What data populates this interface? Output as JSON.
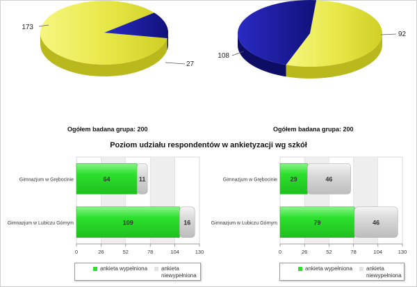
{
  "summary": {
    "left": "Ogółem badana grupa: 200",
    "right": "Ogółem badana grupa: 200"
  },
  "heading": "Poziom udziału respondentów w ankietyzacji wg szkół",
  "legend": {
    "filled": "ankieta wypełniona",
    "unfilled": "ankieta niewypełniona"
  },
  "colors": {
    "pie_yellow": "#e8e84a",
    "pie_blue": "#1a1aa8",
    "bar_green": "#2de02d",
    "bar_gray": "#d4d4d4"
  },
  "chart_data": [
    {
      "type": "pie",
      "slices": [
        {
          "value": 173,
          "color": "#e8e84a"
        },
        {
          "value": 27,
          "color": "#1a1aa8"
        }
      ]
    },
    {
      "type": "pie",
      "slices": [
        {
          "value": 108,
          "color": "#e8e84a"
        },
        {
          "value": 92,
          "color": "#1a1aa8"
        }
      ]
    },
    {
      "type": "bar",
      "orientation": "horizontal",
      "stacked": true,
      "categories": [
        "Gimnazjum w Grębocinie",
        "Gimnazjum w Lubiczu Górnym"
      ],
      "series": [
        {
          "name": "ankieta wypełniona",
          "values": [
            64,
            109
          ]
        },
        {
          "name": "ankieta niewypełniona",
          "values": [
            11,
            16
          ]
        }
      ],
      "xlim": [
        0,
        130
      ],
      "xticks": [
        "0",
        "26",
        "52",
        "78",
        "104",
        "130"
      ],
      "grid": "alternating bands"
    },
    {
      "type": "bar",
      "orientation": "horizontal",
      "stacked": true,
      "categories": [
        "Gimnazjum w Grębocinie",
        "Gimnazjum w Lubiczu Górnym"
      ],
      "series": [
        {
          "name": "ankieta wypełniona",
          "values": [
            29,
            79
          ]
        },
        {
          "name": "ankieta niewypełniona",
          "values": [
            46,
            46
          ]
        }
      ],
      "xlim": [
        0,
        130
      ],
      "xticks": [
        "0",
        "26",
        "52",
        "78",
        "104",
        "130"
      ],
      "grid": "alternating bands"
    }
  ]
}
